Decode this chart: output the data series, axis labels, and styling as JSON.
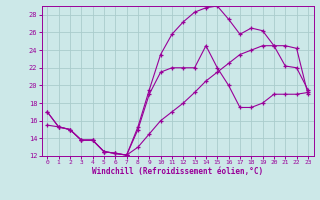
{
  "xlabel": "Windchill (Refroidissement éolien,°C)",
  "xlim": [
    -0.5,
    23.5
  ],
  "ylim": [
    12,
    29
  ],
  "yticks": [
    12,
    14,
    16,
    18,
    20,
    22,
    24,
    26,
    28
  ],
  "xticks": [
    0,
    1,
    2,
    3,
    4,
    5,
    6,
    7,
    8,
    9,
    10,
    11,
    12,
    13,
    14,
    15,
    16,
    17,
    18,
    19,
    20,
    21,
    22,
    23
  ],
  "bg_color": "#cce8e8",
  "line_color": "#990099",
  "grid_color": "#aacccc",
  "curve1_x": [
    0,
    1,
    2,
    3,
    4,
    5,
    6,
    7,
    8,
    9,
    10,
    11,
    12,
    13,
    14,
    15,
    16,
    17,
    18,
    19,
    20,
    21,
    22,
    23
  ],
  "curve1_y": [
    17.0,
    15.3,
    15.0,
    13.8,
    13.8,
    12.5,
    12.3,
    12.1,
    15.0,
    19.0,
    21.5,
    22.0,
    22.0,
    22.0,
    24.5,
    22.0,
    20.0,
    17.5,
    17.5,
    18.0,
    19.0,
    19.0,
    19.0,
    19.2
  ],
  "curve2_x": [
    0,
    1,
    2,
    3,
    4,
    5,
    6,
    7,
    8,
    9,
    10,
    11,
    12,
    13,
    14,
    15,
    16,
    17,
    18,
    19,
    20,
    21,
    22,
    23
  ],
  "curve2_y": [
    17.0,
    15.3,
    15.0,
    13.8,
    13.8,
    12.5,
    12.3,
    12.1,
    15.3,
    19.5,
    23.5,
    25.8,
    27.2,
    28.3,
    28.8,
    29.0,
    27.5,
    25.8,
    26.5,
    26.2,
    24.5,
    22.2,
    22.0,
    19.5
  ],
  "curve3_x": [
    0,
    1,
    2,
    3,
    4,
    5,
    6,
    7,
    8,
    9,
    10,
    11,
    12,
    13,
    14,
    15,
    16,
    17,
    18,
    19,
    20,
    21,
    22,
    23
  ],
  "curve3_y": [
    15.5,
    15.3,
    15.0,
    13.8,
    13.8,
    12.5,
    12.3,
    12.1,
    13.0,
    14.5,
    16.0,
    17.0,
    18.0,
    19.2,
    20.5,
    21.5,
    22.5,
    23.5,
    24.0,
    24.5,
    24.5,
    24.5,
    24.2,
    19.0
  ]
}
